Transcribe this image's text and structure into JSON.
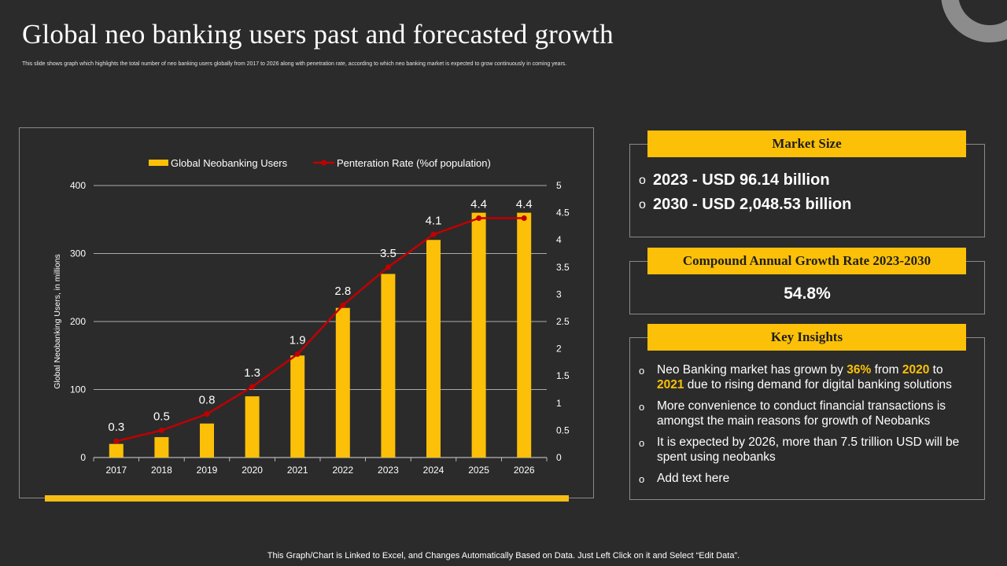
{
  "slide": {
    "title": "Global neo banking users past and forecasted growth",
    "subtitle": "This slide shows graph which highlights the total number of neo banking users globally from 2017 to 2026 along with penetration rate, according to which neo banking market is expected to grow continuously in coming years.",
    "footer": "This Graph/Chart is Linked to Excel, and Changes Automatically Based on Data. Just Left Click on it and Select “Edit Data”."
  },
  "colors": {
    "background": "#2b2b2c",
    "bar": "#fbc007",
    "line": "#c00000",
    "accent": "#fbc007",
    "gridline": "#d9d9d9",
    "text": "#ffffff"
  },
  "chart_data": {
    "type": "bar",
    "categories": [
      "2017",
      "2018",
      "2019",
      "2020",
      "2021",
      "2022",
      "2023",
      "2024",
      "2025",
      "2026"
    ],
    "series": [
      {
        "name": "Global Neobanking Users",
        "type": "bar",
        "axis": "left",
        "values": [
          20,
          30,
          50,
          90,
          150,
          220,
          270,
          320,
          360,
          360
        ]
      },
      {
        "name": "Penteration Rate (%of population)",
        "type": "line",
        "axis": "right",
        "values": [
          0.3,
          0.5,
          0.8,
          1.3,
          1.9,
          2.8,
          3.5,
          4.1,
          4.4,
          4.4
        ],
        "data_labels": [
          "0.3",
          "0.5",
          "0.8",
          "1.3",
          "1.9",
          "2.8",
          "3.5",
          "4.1",
          "4.4",
          "4.4"
        ]
      }
    ],
    "y_left": {
      "label": "Global Neobanking Users, in millions",
      "ylim": [
        0,
        400
      ],
      "ticks": [
        "0",
        "100",
        "200",
        "300",
        "400"
      ]
    },
    "y_right": {
      "ylim": [
        0,
        5
      ],
      "ticks": [
        "0",
        "0.5",
        "1",
        "1.5",
        "2",
        "2.5",
        "3",
        "3.5",
        "4",
        "4.5",
        "5"
      ]
    },
    "legend_position": "top",
    "grid": true
  },
  "market_size": {
    "header": "Market Size",
    "items": [
      "2023 - USD 96.14 billion",
      "2030 - USD 2,048.53 billion"
    ]
  },
  "cagr": {
    "header": "Compound Annual Growth Rate 2023-2030",
    "value": "54.8%"
  },
  "key_insights": {
    "header": "Key Insights",
    "insight1": {
      "p1": "Neo Banking market has grown by ",
      "h1": "36%",
      "p2": " from ",
      "h2": "2020",
      "p3": " to ",
      "h3": "2021",
      "p4": " due to rising demand for digital banking solutions"
    },
    "insight2": "More convenience to conduct financial transactions is amongst the main reasons for growth of Neobanks",
    "insight3": "It is expected by 2026, more than 7.5 trillion USD will be spent using neobanks",
    "insight4": "Add text here"
  },
  "icons": {
    "bullet": "hollow-circle-bullet"
  }
}
